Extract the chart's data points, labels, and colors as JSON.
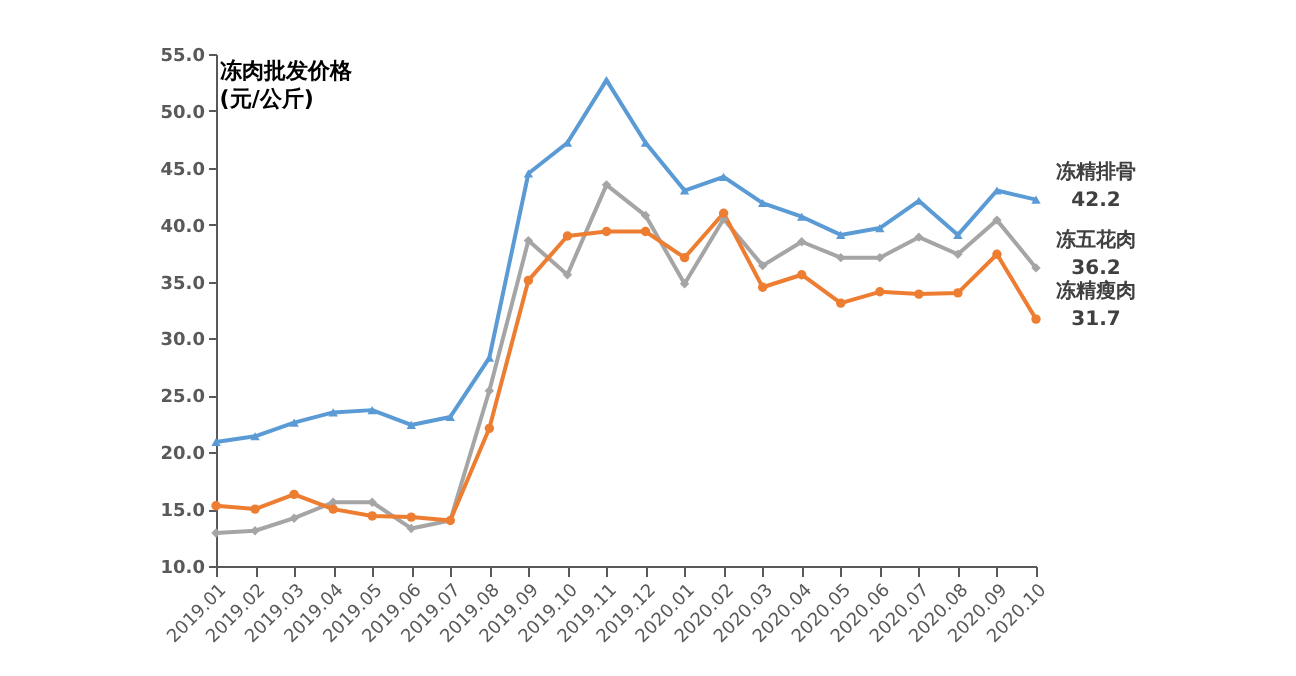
{
  "chart_data": {
    "type": "line",
    "title": "冻肉批发价格",
    "subtitle": "(元/公斤)",
    "categories": [
      "2019.01",
      "2019.02",
      "2019.03",
      "2019.04",
      "2019.05",
      "2019.06",
      "2019.07",
      "2019.08",
      "2019.09",
      "2019.10",
      "2019.11",
      "2019.12",
      "2020.01",
      "2020.02",
      "2020.03",
      "2020.04",
      "2020.05",
      "2020.06",
      "2020.07",
      "2020.08",
      "2020.09",
      "2020.10"
    ],
    "ylim": [
      10,
      55
    ],
    "yticks": [
      {
        "value": 10,
        "label": "10.0"
      },
      {
        "value": 15,
        "label": "15.0"
      },
      {
        "value": 20,
        "label": "20.0"
      },
      {
        "value": 25,
        "label": "25.0"
      },
      {
        "value": 30,
        "label": "30.0"
      },
      {
        "value": 35,
        "label": "35.0"
      },
      {
        "value": 40,
        "label": "40.0"
      },
      {
        "value": 45,
        "label": "45.0"
      },
      {
        "value": 50,
        "label": "50.0"
      },
      {
        "value": 55,
        "label": "55.0"
      }
    ],
    "grid": false,
    "legend": false,
    "series": [
      {
        "name": "冻精排骨",
        "color": "#5b9bd5",
        "marker": "triangle",
        "values": [
          20.9,
          21.4,
          22.6,
          23.5,
          23.7,
          22.4,
          23.1,
          28.3,
          44.5,
          47.2,
          52.7,
          47.2,
          43.0,
          44.2,
          41.9,
          40.7,
          39.1,
          39.7,
          42.1,
          39.1,
          43.0,
          42.2
        ],
        "value_labels": [
          null,
          null,
          null,
          null,
          null,
          null,
          null,
          null,
          null,
          null,
          null,
          null,
          null,
          null,
          null,
          null,
          null,
          null,
          null,
          null,
          null,
          "42.2"
        ]
      },
      {
        "name": "冻五花肉",
        "color": "#a5a5a5",
        "marker": "diamond",
        "values": [
          12.9,
          13.1,
          14.2,
          15.6,
          15.6,
          13.3,
          14.0,
          25.4,
          38.6,
          35.6,
          43.5,
          40.8,
          34.8,
          40.5,
          36.4,
          38.5,
          37.1,
          37.1,
          38.9,
          37.4,
          40.4,
          36.2
        ],
        "value_labels": [
          null,
          null,
          null,
          null,
          null,
          null,
          null,
          null,
          null,
          null,
          null,
          null,
          null,
          null,
          null,
          null,
          null,
          null,
          null,
          null,
          null,
          "36.2"
        ]
      },
      {
        "name": "冻精瘦肉",
        "color": "#ed7d31",
        "marker": "circle",
        "values": [
          15.3,
          15.0,
          16.3,
          15.0,
          14.4,
          14.3,
          14.0,
          22.1,
          35.1,
          39.0,
          39.4,
          39.4,
          37.1,
          41.0,
          34.5,
          35.6,
          33.1,
          34.1,
          33.9,
          34.0,
          37.4,
          31.7
        ],
        "value_labels": [
          null,
          null,
          null,
          null,
          null,
          null,
          null,
          null,
          null,
          null,
          null,
          null,
          null,
          null,
          null,
          null,
          null,
          null,
          null,
          null,
          null,
          "31.7"
        ]
      }
    ]
  }
}
